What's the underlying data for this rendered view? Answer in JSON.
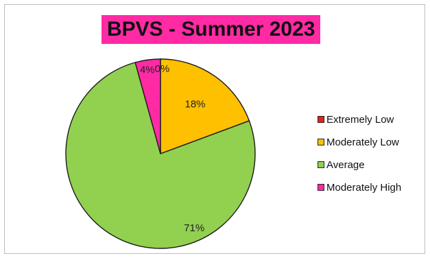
{
  "chart_data": {
    "type": "pie",
    "title": "BPVS - Summer 2023",
    "categories": [
      "Extremely Low",
      "Moderately Low",
      "Average",
      "Moderately High"
    ],
    "values": [
      0,
      18,
      71,
      4
    ],
    "data_labels": [
      "0%",
      "18%",
      "71%",
      "4%"
    ],
    "colors": [
      "#e2231a",
      "#ffc000",
      "#92d050",
      "#ff2aa4"
    ],
    "title_highlight_color": "#ff2aa4",
    "legend_position": "right"
  }
}
